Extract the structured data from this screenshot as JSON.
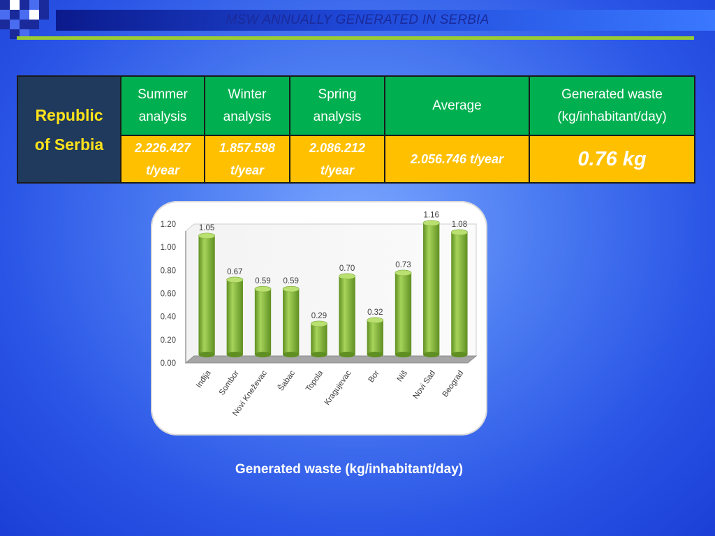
{
  "header": {
    "title": "MSW ANNUALLY GENERATED IN SERBIA"
  },
  "table": {
    "row_label": [
      "Republic",
      "of Serbia"
    ],
    "headers": [
      [
        "Summer",
        "analysis"
      ],
      [
        "Winter",
        "analysis"
      ],
      [
        "Spring",
        "analysis"
      ],
      [
        "Average"
      ],
      [
        "Generated waste",
        "(kg/inhabitant/day)"
      ]
    ],
    "values": [
      [
        "2.226.427",
        "t/year"
      ],
      [
        "1.857.598",
        "t/year"
      ],
      [
        "2.086.212",
        "t/year"
      ],
      [
        "2.056.746 t/year"
      ],
      [
        "0.76 kg"
      ]
    ]
  },
  "caption": "Generated waste (kg/inhabitant/day)",
  "colors": {
    "bar": "#8cbf3f",
    "header_green": "#00b050",
    "value_yellow": "#ffc000"
  },
  "chart_data": {
    "type": "bar",
    "categories": [
      "Inđija",
      "Sombor",
      "Novi Kneževac",
      "Šabac",
      "Topola",
      "Kragujevac",
      "Bor",
      "Niš",
      "Novi Sad",
      "Beograd"
    ],
    "values": [
      1.05,
      0.67,
      0.59,
      0.59,
      0.29,
      0.7,
      0.32,
      0.73,
      1.16,
      1.08
    ],
    "value_labels": [
      "1.05",
      "0.67",
      "0.59",
      "0.59",
      "0.29",
      "0.70",
      "0.32",
      "0.73",
      "1.16",
      "1.08"
    ],
    "yticks": [
      "0.00",
      "0.20",
      "0.40",
      "0.60",
      "0.80",
      "1.00",
      "1.20"
    ],
    "ylim": [
      0,
      1.2
    ],
    "title": "",
    "xlabel": "",
    "ylabel": "",
    "grid": false
  }
}
